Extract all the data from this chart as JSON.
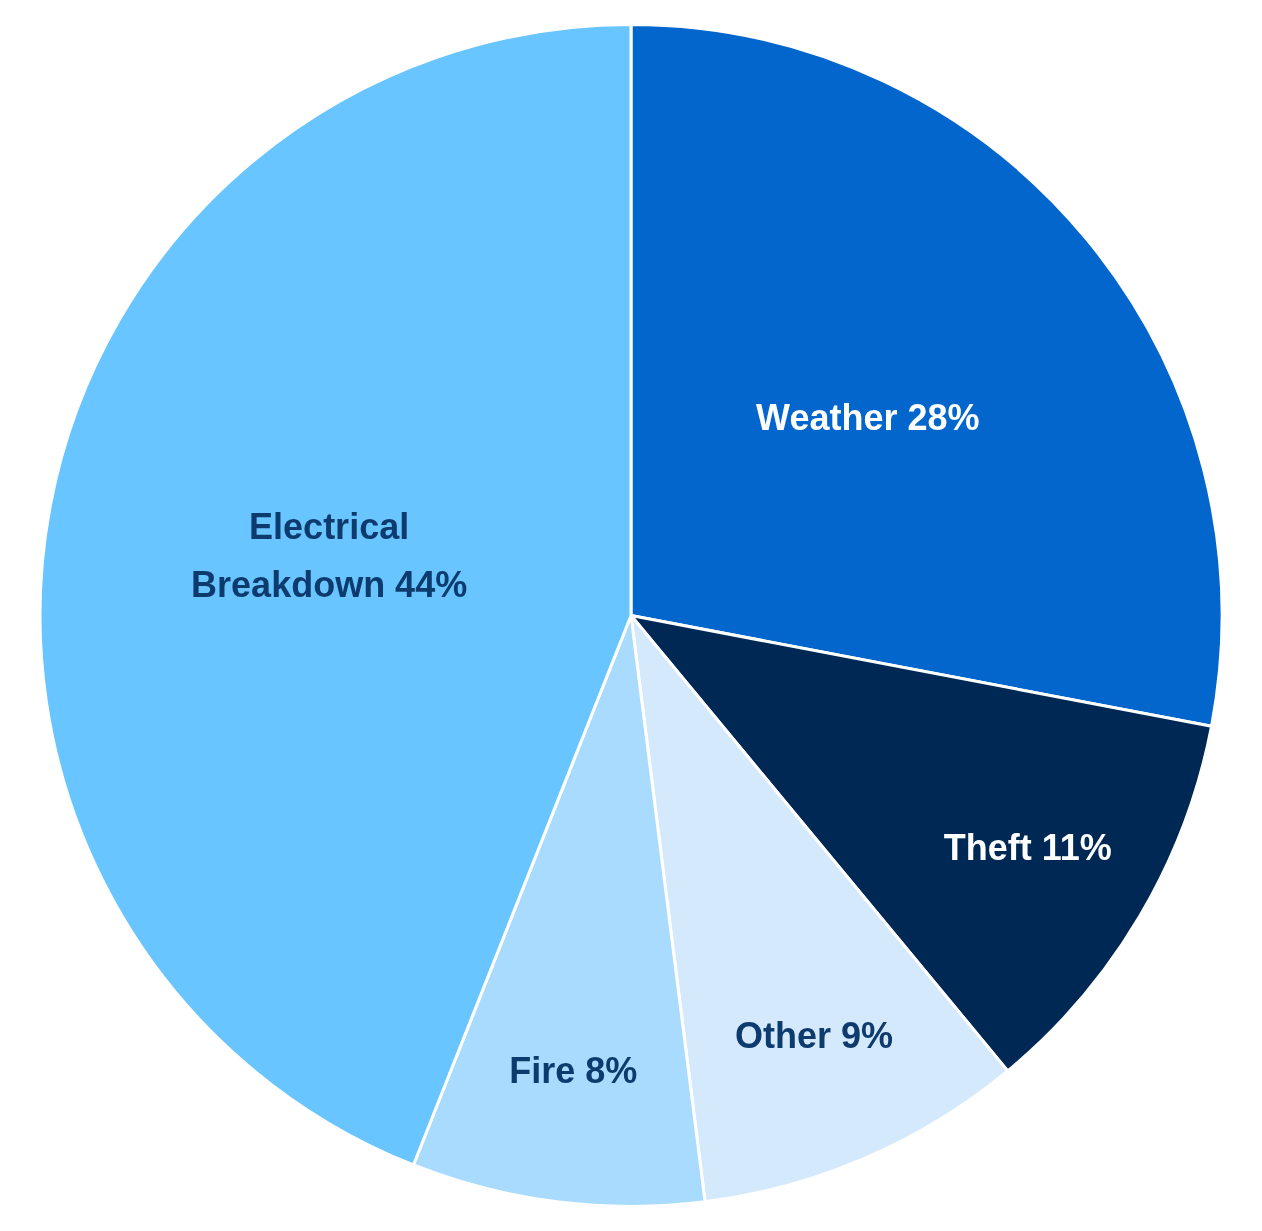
{
  "chart_data": {
    "type": "pie",
    "categories": [
      "Weather",
      "Theft",
      "Other",
      "Fire",
      "Electrical Breakdown"
    ],
    "values": [
      28,
      11,
      9,
      8,
      44
    ],
    "value_labels": [
      "28%",
      "11%",
      "9%",
      "8%",
      "44%"
    ],
    "colors": [
      "#0366cc",
      "#002855",
      "#d5e9fd",
      "#a8dbfd",
      "#69c5ff"
    ],
    "legend": false
  }
}
